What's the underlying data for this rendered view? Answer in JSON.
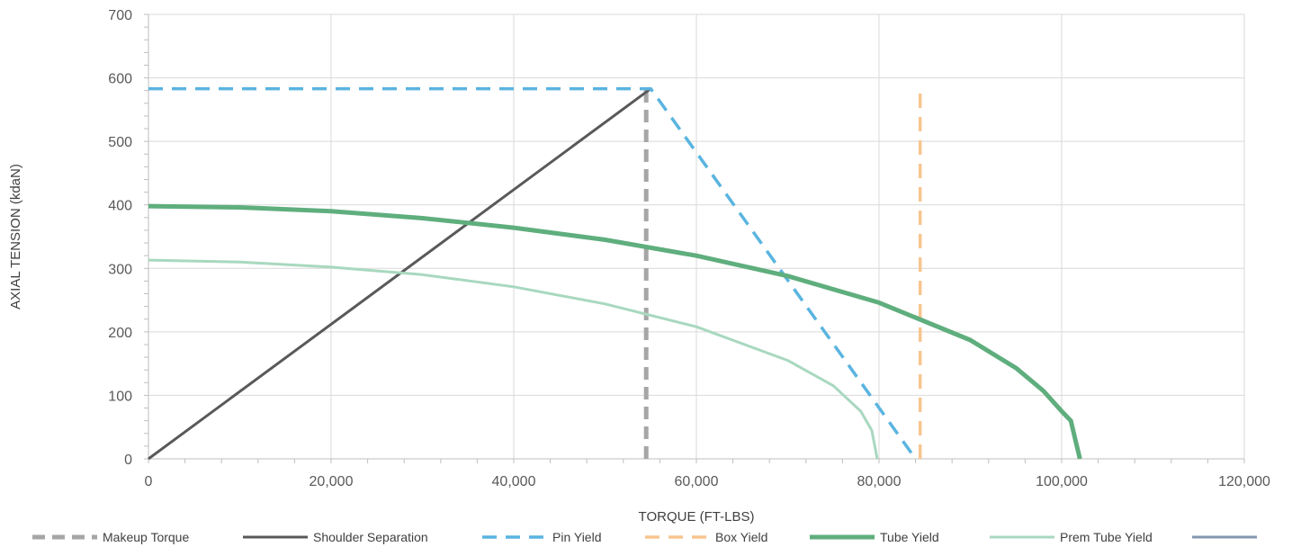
{
  "chart_data": {
    "type": "line",
    "title": "",
    "xlabel": "TORQUE (FT-LBS)",
    "ylabel": "AXIAL TENSION (kdaN)",
    "xlim": [
      0,
      120000
    ],
    "ylim": [
      0,
      700
    ],
    "x_ticks": [
      0,
      20000,
      40000,
      60000,
      80000,
      100000,
      120000
    ],
    "x_tick_labels": [
      "0",
      "20,000",
      "40,000",
      "60,000",
      "80,000",
      "100,000",
      "120,000"
    ],
    "y_ticks": [
      0,
      100,
      200,
      300,
      400,
      500,
      600,
      700
    ],
    "y_tick_labels": [
      "0",
      "100",
      "200",
      "300",
      "400",
      "500",
      "600",
      "700"
    ],
    "grid": true,
    "legend_position": "bottom",
    "series": [
      {
        "name": "Makeup Torque",
        "color": "#a6a6a6",
        "dash": "dashed",
        "width": 5,
        "points": [
          [
            54500,
            0
          ],
          [
            54500,
            583
          ]
        ]
      },
      {
        "name": "Shoulder Separation",
        "color": "#595959",
        "dash": "solid",
        "width": 3,
        "points": [
          [
            0,
            0
          ],
          [
            55000,
            583
          ]
        ]
      },
      {
        "name": "Pin Yield",
        "color": "#5ab4e0",
        "dash": "dashed",
        "width": 3.5,
        "points": [
          [
            0,
            583
          ],
          [
            55000,
            583
          ],
          [
            84000,
            0
          ]
        ]
      },
      {
        "name": "Box Yield",
        "color": "#f8c58f",
        "dash": "dashed",
        "width": 3.5,
        "points": [
          [
            84500,
            0
          ],
          [
            84500,
            583
          ]
        ]
      },
      {
        "name": "Tube Yield",
        "color": "#5fae7d",
        "dash": "solid",
        "width": 5,
        "points": [
          [
            0,
            398
          ],
          [
            10000,
            396
          ],
          [
            20000,
            390
          ],
          [
            30000,
            379
          ],
          [
            40000,
            364
          ],
          [
            50000,
            345
          ],
          [
            60000,
            320
          ],
          [
            70000,
            288
          ],
          [
            80000,
            246
          ],
          [
            90000,
            187
          ],
          [
            95000,
            143
          ],
          [
            98000,
            107
          ],
          [
            100000,
            75
          ],
          [
            101000,
            60
          ],
          [
            101500,
            30
          ],
          [
            102000,
            0
          ]
        ]
      },
      {
        "name": "Prem Tube Yield",
        "color": "#a8d8bf",
        "dash": "solid",
        "width": 3,
        "points": [
          [
            0,
            313
          ],
          [
            10000,
            310
          ],
          [
            20000,
            302
          ],
          [
            30000,
            290
          ],
          [
            40000,
            271
          ],
          [
            50000,
            244
          ],
          [
            60000,
            208
          ],
          [
            70000,
            155
          ],
          [
            75000,
            115
          ],
          [
            78000,
            75
          ],
          [
            79200,
            45
          ],
          [
            79800,
            0
          ]
        ]
      },
      {
        "name": "",
        "color": "#8497b0",
        "dash": "solid",
        "width": 3,
        "points": []
      }
    ]
  }
}
